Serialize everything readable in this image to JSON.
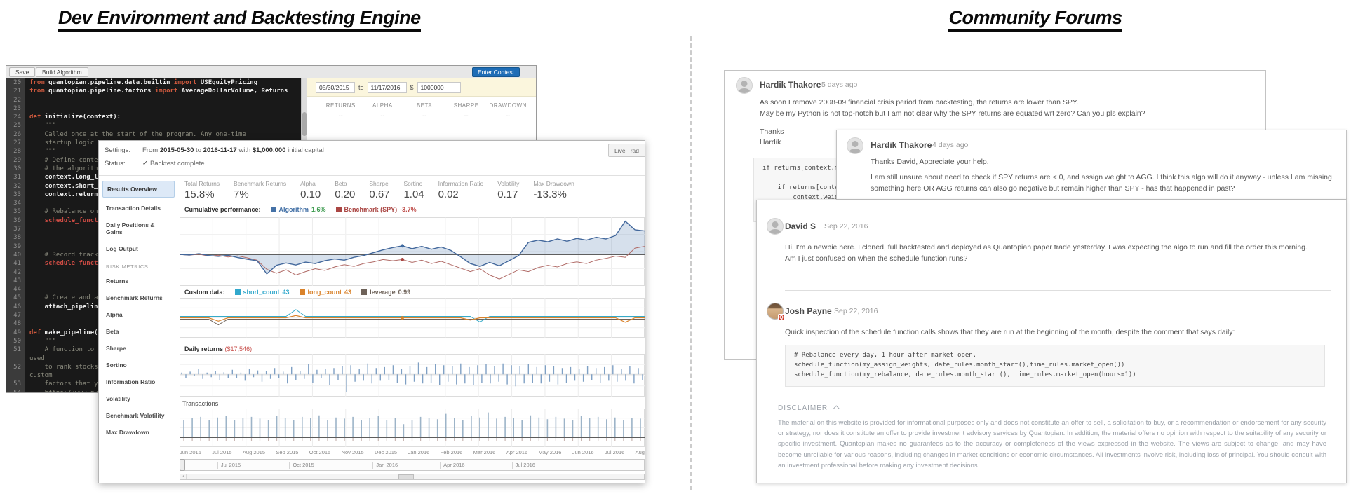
{
  "titles": {
    "left": "Dev Environment and Backtesting Engine",
    "right": "Community Forums"
  },
  "ide": {
    "toolbar": {
      "save": "Save",
      "build": "Build Algorithm",
      "contest": "Enter Contest"
    },
    "params": {
      "start": "05/30/2015",
      "to_label": "to",
      "end": "11/17/2016",
      "currency": "$",
      "capital": "1000000"
    },
    "quickstats": {
      "headers": [
        "RETURNS",
        "ALPHA",
        "BETA",
        "SHARPE",
        "DRAWDOWN"
      ],
      "values": [
        "--",
        "--",
        "--",
        "--",
        "--"
      ]
    },
    "editor_rows": [
      {
        "n": "20",
        "t": "from quantopian.pipeline.data.builtin import USEquityPricing",
        "c": ""
      },
      {
        "n": "21",
        "t": "from quantopian.pipeline.factors import AverageDollarVolume, Returns",
        "c": ""
      },
      {
        "n": "22",
        "t": "",
        "c": ""
      },
      {
        "n": "23",
        "t": "",
        "c": ""
      },
      {
        "n": "24",
        "t": "def initialize(context):",
        "c": ""
      },
      {
        "n": "25",
        "t": "    \"\"\"",
        "c": "comment"
      },
      {
        "n": "26",
        "t": "    Called once at the start of the program. Any one-time",
        "c": "comment"
      },
      {
        "n": "27",
        "t": "    startup logic goes",
        "c": "comment"
      },
      {
        "n": "28",
        "t": "    \"\"\"",
        "c": "comment"
      },
      {
        "n": "29",
        "t": "    # Define context v",
        "c": "comment"
      },
      {
        "n": "30",
        "t": "    # the algorithm.",
        "c": "comment"
      },
      {
        "n": "31",
        "t": "    context.long_lever",
        "c": ""
      },
      {
        "n": "32",
        "t": "    context.short_leve",
        "c": ""
      },
      {
        "n": "33",
        "t": "    context.returns_lo",
        "c": ""
      },
      {
        "n": "34",
        "t": "",
        "c": ""
      },
      {
        "n": "35",
        "t": "    # Rebalance on the",
        "c": "comment"
      },
      {
        "n": "36",
        "t": "    schedule_function(",
        "c": "red"
      },
      {
        "n": "37",
        "t": "",
        "c": ""
      },
      {
        "n": "38",
        "t": "",
        "c": ""
      },
      {
        "n": "39",
        "t": "",
        "c": ""
      },
      {
        "n": "40",
        "t": "    # Record tracking",
        "c": "comment"
      },
      {
        "n": "41",
        "t": "    schedule_function(",
        "c": "red"
      },
      {
        "n": "42",
        "t": "",
        "c": ""
      },
      {
        "n": "43",
        "t": "",
        "c": ""
      },
      {
        "n": "44",
        "t": "",
        "c": ""
      },
      {
        "n": "45",
        "t": "    # Create and attac",
        "c": "comment"
      },
      {
        "n": "46",
        "t": "    attach_pipeline(ma",
        "c": ""
      },
      {
        "n": "47",
        "t": "",
        "c": ""
      },
      {
        "n": "48",
        "t": "",
        "c": ""
      },
      {
        "n": "49",
        "t": "def make_pipeline(cont",
        "c": ""
      },
      {
        "n": "50",
        "t": "    \"\"\"",
        "c": "comment"
      },
      {
        "n": "51",
        "t": "    A function to crea",
        "c": "comment"
      },
      {
        "n": "",
        "t": "used",
        "c": "comment"
      },
      {
        "n": "52",
        "t": "    to rank stocks bas",
        "c": "comment"
      },
      {
        "n": "",
        "t": "custom",
        "c": "comment"
      },
      {
        "n": "53",
        "t": "    factors that you c",
        "c": "comment"
      },
      {
        "n": "54",
        "t": "    https://www.quanto",
        "c": "comment"
      }
    ]
  },
  "backtest": {
    "settings_label": "Settings:",
    "settings_parts": [
      {
        "t": "From ",
        "cls": ""
      },
      {
        "t": "2015-05-30",
        "cls": "b"
      },
      {
        "t": " to ",
        "cls": ""
      },
      {
        "t": "2016-11-17",
        "cls": "b"
      },
      {
        "t": " with ",
        "cls": ""
      },
      {
        "t": "$1,000,000",
        "cls": "b"
      },
      {
        "t": " initial capital",
        "cls": ""
      }
    ],
    "status_label": "Status:",
    "check_icon": "✓",
    "status_value": "Backtest complete",
    "live_button": "Live Trad",
    "sidebar_items": [
      {
        "label": "Results Overview",
        "cls": "sel"
      },
      {
        "label": "Transaction Details",
        "cls": ""
      },
      {
        "label": "Daily Positions & Gains",
        "cls": ""
      },
      {
        "label": "Log Output",
        "cls": ""
      },
      {
        "label": "RISK METRICS",
        "cls": "hdr"
      },
      {
        "label": "Returns",
        "cls": ""
      },
      {
        "label": "Benchmark Returns",
        "cls": ""
      },
      {
        "label": "Alpha",
        "cls": ""
      },
      {
        "label": "Beta",
        "cls": ""
      },
      {
        "label": "Sharpe",
        "cls": ""
      },
      {
        "label": "Sortino",
        "cls": ""
      },
      {
        "label": "Information Ratio",
        "cls": ""
      },
      {
        "label": "Volatility",
        "cls": ""
      },
      {
        "label": "Benchmark Volatility",
        "cls": ""
      },
      {
        "label": "Max Drawdown",
        "cls": ""
      }
    ],
    "metrics": [
      {
        "label": "Total Returns",
        "value": "15.8%"
      },
      {
        "label": "Benchmark Returns",
        "value": "7%"
      },
      {
        "label": "Alpha",
        "value": "0.10"
      },
      {
        "label": "Beta",
        "value": "0.20"
      },
      {
        "label": "Sharpe",
        "value": "0.67"
      },
      {
        "label": "Sortino",
        "value": "1.04"
      },
      {
        "label": "Information Ratio",
        "value": "0.02"
      },
      {
        "label": "Volatility",
        "value": "0.17"
      },
      {
        "label": "Max Drawdown",
        "value": "-13.3%"
      }
    ],
    "legend_cumulative": {
      "title": "Cumulative performance:",
      "items": [
        {
          "name": "Algorithm",
          "value": "1.6%",
          "color": "#4572a7",
          "vcolor": "#3c9a4e"
        },
        {
          "name": "Benchmark (SPY)",
          "value": "-3.7%",
          "color": "#aa4643",
          "vcolor": "#c0504d"
        }
      ]
    },
    "legend_custom": {
      "title": "Custom data:",
      "items": [
        {
          "name": "short_count",
          "value": "43",
          "color": "#31a8cc",
          "vcolor": "#31a8cc"
        },
        {
          "name": "long_count",
          "value": "43",
          "color": "#d9822b",
          "vcolor": "#d9822b"
        },
        {
          "name": "leverage",
          "value": "0.99",
          "color": "#6e6259",
          "vcolor": "#6e6259"
        }
      ]
    },
    "daily_label": "Daily returns",
    "daily_value": "($17,546)",
    "transactions_label": "Transactions",
    "axis_months": [
      "Jun 2015",
      "Jul 2015",
      "Aug 2015",
      "Sep 2015",
      "Oct 2015",
      "Nov 2015",
      "Dec 2015",
      "Jan 2016",
      "Feb 2016",
      "Mar 2016",
      "Apr 2016",
      "May 2016",
      "Jun 2016",
      "Jul 2016",
      "Aug"
    ],
    "range_items": [
      {
        "label": "Jul 2015",
        "left": "8%"
      },
      {
        "label": "Oct 2015",
        "left": "23.5%"
      },
      {
        "label": "Jan 2016",
        "left": "41.5%"
      },
      {
        "label": "Apr 2016",
        "left": "56%"
      },
      {
        "label": "Jul 2016",
        "left": "71.5%"
      }
    ]
  },
  "charts": {
    "cumulative": {
      "type": "line-area",
      "ylim": [
        -5.5,
        6.5
      ],
      "marker_index": 23,
      "algorithm": [
        0,
        -0.1,
        0.15,
        -0.2,
        -0.35,
        -0.15,
        -0.55,
        -0.85,
        -1.1,
        -3.4,
        -1.9,
        -1.5,
        -1.85,
        -1.35,
        -1.6,
        -1.1,
        -0.8,
        -1.0,
        -0.5,
        -0.2,
        0.3,
        0.8,
        1.2,
        1.5,
        1.0,
        1.4,
        0.9,
        1.3,
        0.7,
        -0.4,
        -1.6,
        -2.1,
        -1.4,
        -2.0,
        -1.1,
        -0.2,
        2.1,
        2.5,
        2.2,
        2.7,
        2.3,
        2.8,
        2.5,
        3.0,
        2.7,
        3.3,
        5.8,
        4.3,
        4.1
      ],
      "benchmark": [
        0,
        -0.15,
        0.05,
        -0.3,
        -0.15,
        -0.45,
        -0.25,
        -0.6,
        -1.0,
        -2.6,
        -3.3,
        -2.7,
        -3.6,
        -3.0,
        -2.5,
        -2.8,
        -2.2,
        -1.8,
        -2.1,
        -1.6,
        -1.3,
        -0.9,
        -1.1,
        -0.9,
        -1.4,
        -1.0,
        -1.6,
        -1.2,
        -1.8,
        -2.4,
        -3.0,
        -2.5,
        -3.6,
        -4.3,
        -3.5,
        -2.7,
        -3.0,
        -2.3,
        -1.9,
        -2.2,
        -1.6,
        -1.3,
        -1.6,
        -1.0,
        -0.7,
        -0.3,
        -0.5,
        1.1,
        1.4
      ]
    },
    "custom": {
      "type": "flat-lines",
      "marker_index": 23,
      "long_count_offsets": [
        0,
        0,
        0,
        0,
        -0.3,
        0,
        0,
        0,
        0,
        0,
        0,
        0,
        0.2,
        0,
        0,
        0,
        0,
        0,
        0,
        0,
        0,
        0,
        0,
        0,
        0,
        0,
        0,
        0,
        0,
        0,
        -0.2,
        0,
        0,
        0,
        0,
        0,
        0,
        0,
        0,
        0,
        0,
        0,
        0,
        0,
        0,
        0,
        -0.4,
        0,
        0
      ],
      "short_count_offsets": [
        0,
        0,
        0,
        0,
        0,
        0,
        0,
        0,
        0,
        0,
        0,
        0,
        0.6,
        0,
        0,
        0,
        0,
        0,
        0,
        0,
        0,
        0,
        0,
        0,
        0,
        0,
        0,
        0,
        0,
        0,
        0,
        -0.5,
        0,
        0,
        0,
        0,
        0,
        0,
        0,
        0,
        0,
        0,
        0,
        0,
        0,
        0,
        0,
        0,
        0
      ],
      "leverage_offsets": [
        0,
        0,
        0,
        0,
        -0.5,
        0,
        0,
        0,
        0,
        0,
        0,
        0,
        0,
        0,
        0,
        0,
        0,
        0,
        0,
        0,
        0,
        0,
        0,
        0,
        0,
        0,
        0,
        0,
        0,
        0,
        0,
        0,
        0,
        0,
        0,
        0,
        0,
        0,
        0,
        0,
        0,
        0,
        0,
        0,
        0,
        0,
        0,
        0,
        0
      ]
    },
    "daily": {
      "type": "center-bars",
      "values": [
        0.1,
        -0.2,
        0.15,
        -0.1,
        0.3,
        -0.25,
        0.1,
        -0.15,
        0.2,
        -0.3,
        0.12,
        -0.18,
        0.25,
        -0.2,
        0.1,
        -0.35,
        0.3,
        -0.15,
        0.22,
        -0.4,
        0.18,
        -0.25,
        0.35,
        -0.2,
        0.15,
        -0.5,
        0.4,
        -0.3,
        0.2,
        -0.25,
        0.55,
        -0.45,
        0.25,
        -0.2,
        0.3,
        -0.6,
        0.35,
        -0.3,
        0.45,
        -0.95,
        0.5,
        -0.4,
        0.3,
        -0.35,
        0.6,
        -0.5,
        0.35,
        -0.35,
        0.4,
        -0.3,
        0.5,
        -0.45,
        0.3,
        -0.55,
        0.45,
        -0.4,
        0.65,
        -0.5,
        0.4,
        -0.45,
        0.55,
        -0.6,
        0.5,
        -0.4,
        0.45,
        -0.55,
        0.6,
        -0.5,
        0.4,
        -0.6,
        0.5,
        -0.45,
        0.55,
        -0.5,
        0.45,
        -0.4,
        0.6,
        -0.55,
        0.5,
        -0.65,
        0.45,
        -0.5,
        0.55,
        -0.45,
        0.4,
        -0.5,
        0.5,
        -0.4,
        0.45,
        -0.55,
        0.35,
        -0.45,
        0.4,
        -0.35,
        0.3,
        -0.4,
        0.45,
        -0.3,
        0.35,
        -0.45,
        0.4,
        -0.35,
        0.5,
        -0.4,
        0.3,
        -0.35,
        0.45,
        -0.5,
        0.35,
        -0.3
      ]
    },
    "transactions": {
      "type": "base-bars",
      "values": [
        0.6,
        0.65,
        0.7,
        0.6,
        0.68,
        0.72,
        0.6,
        0.66,
        0.7,
        0.64,
        0.6,
        0.72,
        0.66,
        0.6,
        0.7,
        0.65,
        0.75,
        0.6,
        0.68,
        0.64,
        0.7,
        0.6,
        0.66,
        0.72,
        0.6,
        0.65,
        0.45,
        0.6,
        0.7,
        0.66,
        0.62,
        0.8,
        0.66,
        0.6,
        0.72,
        0.68,
        0.85,
        0.64,
        0.7,
        0.66,
        0.6,
        0.75,
        0.68,
        0.62,
        0.7,
        0.64,
        0.6,
        0.72,
        0.66,
        0.7,
        0.62,
        0.68,
        0.6,
        0.66,
        0.64
      ]
    }
  },
  "forum": {
    "post1": {
      "author": "Hardik Thakore",
      "time": "5 days ago",
      "line1": "As soon I remove 2008-09 financial crisis period from backtesting, the returns are lower than SPY.",
      "line2": "May be my Python is not top-notch but I am not clear why the SPY returns are equated wrt zero? Can you pls explain?",
      "line3": "Thanks",
      "line4": "Hardik",
      "code": "if returns[context.mom\n\n    if returns[context\n        context.weights"
    },
    "post2": {
      "author": "Hardik Thakore",
      "time": "4 days ago",
      "line1": "Thanks David, Appreciate your help.",
      "para": "I am still unsure about need to check if SPY returns are < 0, and assign weight to AGG. I think this algo will do it anyway - unless I am missing something here OR AGG returns can also go negative but remain higher than SPY - has that happened in past?"
    },
    "post3": {
      "author": "David S",
      "time": "Sep 22, 2016",
      "para": "Hi, I'm a newbie here. I cloned, full backtested and deployed as Quantopian paper trade yesterday. I was expecting the algo to run and fill the order this morning. Am I just confused on when the schedule function runs?"
    },
    "post4": {
      "author": "Josh Payne",
      "time": "Sep 22, 2016",
      "badge": "Q",
      "para": "Quick inspection of the schedule function calls shows that they are run at the beginning of the month, despite the comment that says daily:",
      "code": "# Rebalance every day, 1 hour after market open.\nschedule_function(my_assign_weights, date_rules.month_start(),time_rules.market_open())\nschedule_function(my_rebalance, date_rules.month_start(), time_rules.market_open(hours=1))"
    },
    "disclaimer": {
      "title": "DISCLAIMER",
      "text": "The material on this website is provided for informational purposes only and does not constitute an offer to sell, a solicitation to buy, or a recommendation or endorsement for any security or strategy, nor does it constitute an offer to provide investment advisory services by Quantopian. In addition, the material offers no opinion with respect to the suitability of any security or specific investment. Quantopian makes no guarantees as to the accuracy or completeness of the views expressed in the website. The views are subject to change, and may have become unreliable for various reasons, including changes in market conditions or economic circumstances. All investments involve risk, including loss of principal. You should consult with an investment professional before making any investment decisions."
    }
  }
}
